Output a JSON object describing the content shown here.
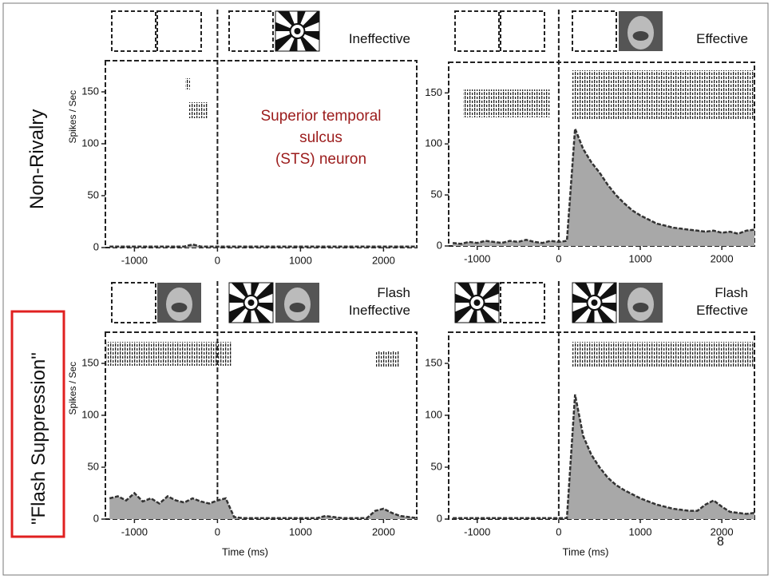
{
  "row_labels": [
    "Non-Rivalry",
    "\"Flash Suppression\""
  ],
  "annotation": "Superior temporal\nsulcus\n(STS) neuron",
  "page_number": "8",
  "chart_data": [
    {
      "type": "area",
      "title": "Ineffective",
      "ylabel": "Spikes / Sec",
      "x": [
        -1300,
        -1200,
        -1100,
        -1000,
        -900,
        -800,
        -700,
        -600,
        -500,
        -400,
        -300,
        -200,
        -100,
        0,
        100,
        200,
        300,
        400,
        500,
        600,
        700,
        800,
        900,
        1000,
        1100,
        1200,
        1300,
        1400,
        1500,
        1600,
        1700,
        1800,
        1900,
        2000,
        2100,
        2200,
        2300,
        2400
      ],
      "values": [
        1,
        1,
        1,
        1,
        1,
        1,
        1,
        1,
        1,
        1,
        3,
        1,
        1,
        1,
        1,
        1,
        1,
        1,
        1,
        1,
        1,
        1,
        1,
        1,
        1,
        1,
        1,
        1,
        1,
        1,
        1,
        1,
        1,
        1,
        1,
        1,
        1,
        1
      ],
      "xlim": [
        -1350,
        2400
      ],
      "ylim": [
        0,
        180
      ],
      "xticks": [
        -1000,
        0,
        1000,
        2000
      ],
      "yticks": [
        0,
        50,
        100,
        150
      ]
    },
    {
      "type": "area",
      "title": "Effective",
      "x": [
        -1300,
        -1200,
        -1100,
        -1000,
        -900,
        -800,
        -700,
        -600,
        -500,
        -400,
        -300,
        -200,
        -100,
        0,
        100,
        200,
        300,
        400,
        500,
        600,
        700,
        800,
        900,
        1000,
        1100,
        1200,
        1300,
        1400,
        1500,
        1600,
        1700,
        1800,
        1900,
        2000,
        2100,
        2200,
        2300,
        2400
      ],
      "values": [
        3,
        2,
        4,
        3,
        5,
        4,
        3,
        5,
        4,
        6,
        4,
        3,
        5,
        4,
        5,
        115,
        95,
        82,
        72,
        60,
        50,
        42,
        35,
        30,
        26,
        22,
        20,
        18,
        17,
        16,
        15,
        14,
        15,
        13,
        14,
        12,
        15,
        16
      ],
      "xlim": [
        -1350,
        2400
      ],
      "ylim": [
        0,
        180
      ],
      "xticks": [
        -1000,
        0,
        1000,
        2000
      ],
      "yticks": [
        0,
        50,
        100,
        150
      ]
    },
    {
      "type": "area",
      "title": "Flash\nIneffective",
      "ylabel": "Spikes / Sec",
      "xlabel": "Time (ms)",
      "x": [
        -1300,
        -1200,
        -1100,
        -1000,
        -900,
        -800,
        -700,
        -600,
        -500,
        -400,
        -300,
        -200,
        -100,
        0,
        100,
        200,
        300,
        400,
        500,
        600,
        700,
        800,
        900,
        1000,
        1100,
        1200,
        1300,
        1400,
        1500,
        1600,
        1700,
        1800,
        1900,
        2000,
        2100,
        2200,
        2300,
        2400
      ],
      "values": [
        20,
        22,
        18,
        25,
        17,
        20,
        15,
        22,
        18,
        16,
        20,
        17,
        15,
        18,
        20,
        2,
        1,
        1,
        1,
        1,
        1,
        1,
        1,
        1,
        1,
        1,
        3,
        2,
        1,
        1,
        1,
        1,
        8,
        10,
        6,
        3,
        2,
        1
      ],
      "xlim": [
        -1350,
        2400
      ],
      "ylim": [
        0,
        180
      ],
      "xticks": [
        -1000,
        0,
        1000,
        2000
      ],
      "yticks": [
        0,
        50,
        100,
        150
      ]
    },
    {
      "type": "area",
      "title": "Flash\nEffective",
      "xlabel": "Time (ms)",
      "x": [
        -1300,
        -1200,
        -1100,
        -1000,
        -900,
        -800,
        -700,
        -600,
        -500,
        -400,
        -300,
        -200,
        -100,
        0,
        100,
        200,
        300,
        400,
        500,
        600,
        700,
        800,
        900,
        1000,
        1100,
        1200,
        1300,
        1400,
        1500,
        1600,
        1700,
        1800,
        1900,
        2000,
        2100,
        2200,
        2300,
        2400
      ],
      "values": [
        1,
        1,
        1,
        1,
        1,
        1,
        1,
        1,
        1,
        1,
        1,
        1,
        1,
        1,
        1,
        120,
        80,
        62,
        50,
        40,
        33,
        28,
        24,
        20,
        17,
        14,
        12,
        10,
        9,
        8,
        8,
        14,
        18,
        12,
        7,
        6,
        5,
        6
      ],
      "xlim": [
        -1350,
        2400
      ],
      "ylim": [
        0,
        180
      ],
      "xticks": [
        -1000,
        0,
        1000,
        2000
      ],
      "yticks": [
        0,
        50,
        100,
        150
      ]
    }
  ]
}
